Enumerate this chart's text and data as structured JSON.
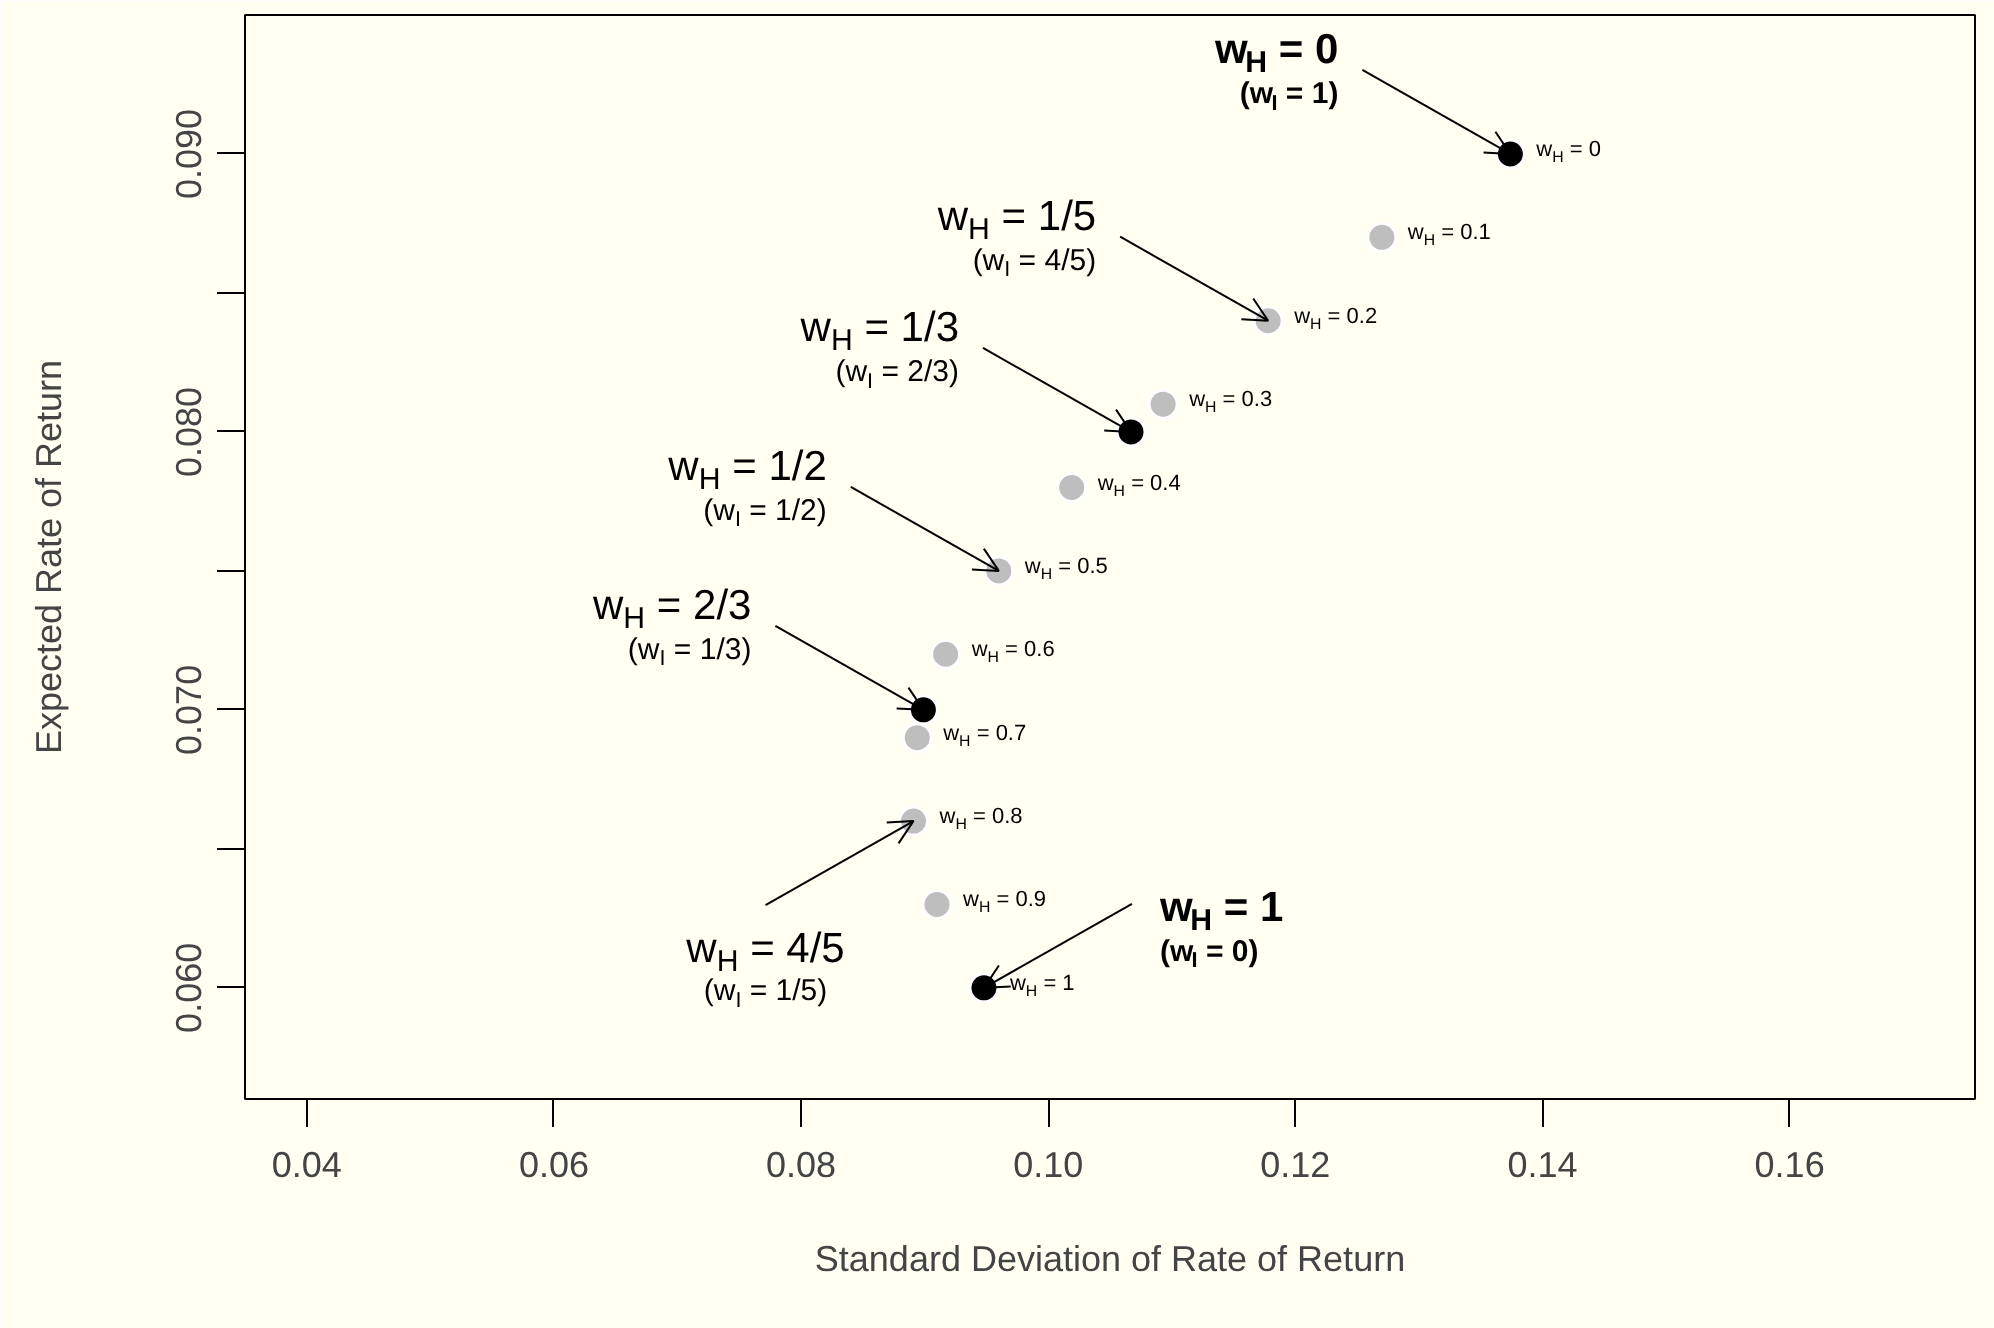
{
  "chart_data": {
    "type": "scatter",
    "xlabel": "Standard Deviation of Rate of Return",
    "ylabel": "Expected Rate of Return",
    "marker": "circle",
    "grid": false,
    "xlim": [
      0.035,
      0.175
    ],
    "ylim": [
      0.056,
      0.095
    ],
    "xticks": [
      0.04,
      0.06,
      0.08,
      {
        "value": 0.1,
        "label": "0.10"
      },
      0.12,
      0.14,
      0.16
    ],
    "yticks": [
      {
        "value": 0.06,
        "label": "0.060"
      },
      {
        "value": 0.065,
        "label": null
      },
      {
        "value": 0.07,
        "label": "0.070"
      },
      {
        "value": 0.075,
        "label": null
      },
      {
        "value": 0.08,
        "label": "0.080"
      },
      {
        "value": 0.085,
        "label": null
      },
      {
        "value": 0.09,
        "label": "0.090"
      }
    ],
    "series": [
      {
        "color": "#bebebe",
        "x": [
          0.127,
          0.1178,
          0.1093,
          0.1019,
          0.096,
          0.0917,
          0.0894,
          0.0891,
          0.091
        ],
        "values": [
          0.087,
          0.084,
          0.081,
          0.078,
          0.075,
          0.072,
          0.069,
          0.066,
          0.063
        ]
      },
      {
        "color": "#000000",
        "x": [
          0.1374,
          0.1067,
          0.0899,
          0.0948
        ],
        "values": [
          0.09,
          0.08,
          0.07,
          0.06
        ]
      }
    ],
    "annotations": [
      {
        "text": "w$_{H}$ = 0",
        "x": 0.1374,
        "y": 0.09
      },
      {
        "text": "w$_{H}$ = 0.1",
        "x": 0.127,
        "y": 0.087
      },
      {
        "text": "w$_{H}$ = 0.2",
        "x": 0.1178,
        "y": 0.084
      },
      {
        "text": "w$_{H}$ = 0.3",
        "x": 0.1093,
        "y": 0.081
      },
      {
        "text": "w$_{H}$ = 0.4",
        "x": 0.1019,
        "y": 0.078
      },
      {
        "text": "w$_{H}$ = 0.5",
        "x": 0.096,
        "y": 0.075
      },
      {
        "text": "w$_{H}$ = 0.6",
        "x": 0.0917,
        "y": 0.072
      },
      {
        "text": "w$_{H}$ = 0.7",
        "x": 0.0894,
        "y": 0.069
      },
      {
        "text": "w$_{H}$ = 0.8",
        "x": 0.0891,
        "y": 0.066
      },
      {
        "text": "w$_{H}$ = 0.9",
        "x": 0.091,
        "y": 0.063
      },
      {
        "text": "w$_{H}$ = 1",
        "x": 0.0948,
        "y": 0.06
      },
      {
        "text": "w$_{H}$ = 0\n(w$_{I}$ = 1)",
        "x": 0.1374,
        "y": 0.09
      },
      {
        "text": "w$_{H}$ = 1/5\n(w$_{I}$ = 4/5)",
        "x": 0.1178,
        "y": 0.084
      },
      {
        "text": "w$_{H}$ = 1/3\n(w$_{I}$ = 2/3)",
        "x": 0.1067,
        "y": 0.08
      },
      {
        "text": "w$_{H}$ = 1/2\n(w$_{I}$ = 1/2)",
        "x": 0.096,
        "y": 0.075
      },
      {
        "text": "w$_{H}$ = 2/3\n(w$_{I}$ = 1/3)",
        "x": 0.0899,
        "y": 0.07
      },
      {
        "text": "w$_{H}$ = 4/5\n(w$_{I}$ = 1/5)",
        "x": 0.0891,
        "y": 0.066
      },
      {
        "text": "w$_{H}$ = 1\n(w$_{I}$ = 0)",
        "x": 0.0948,
        "y": 0.06
      }
    ]
  }
}
